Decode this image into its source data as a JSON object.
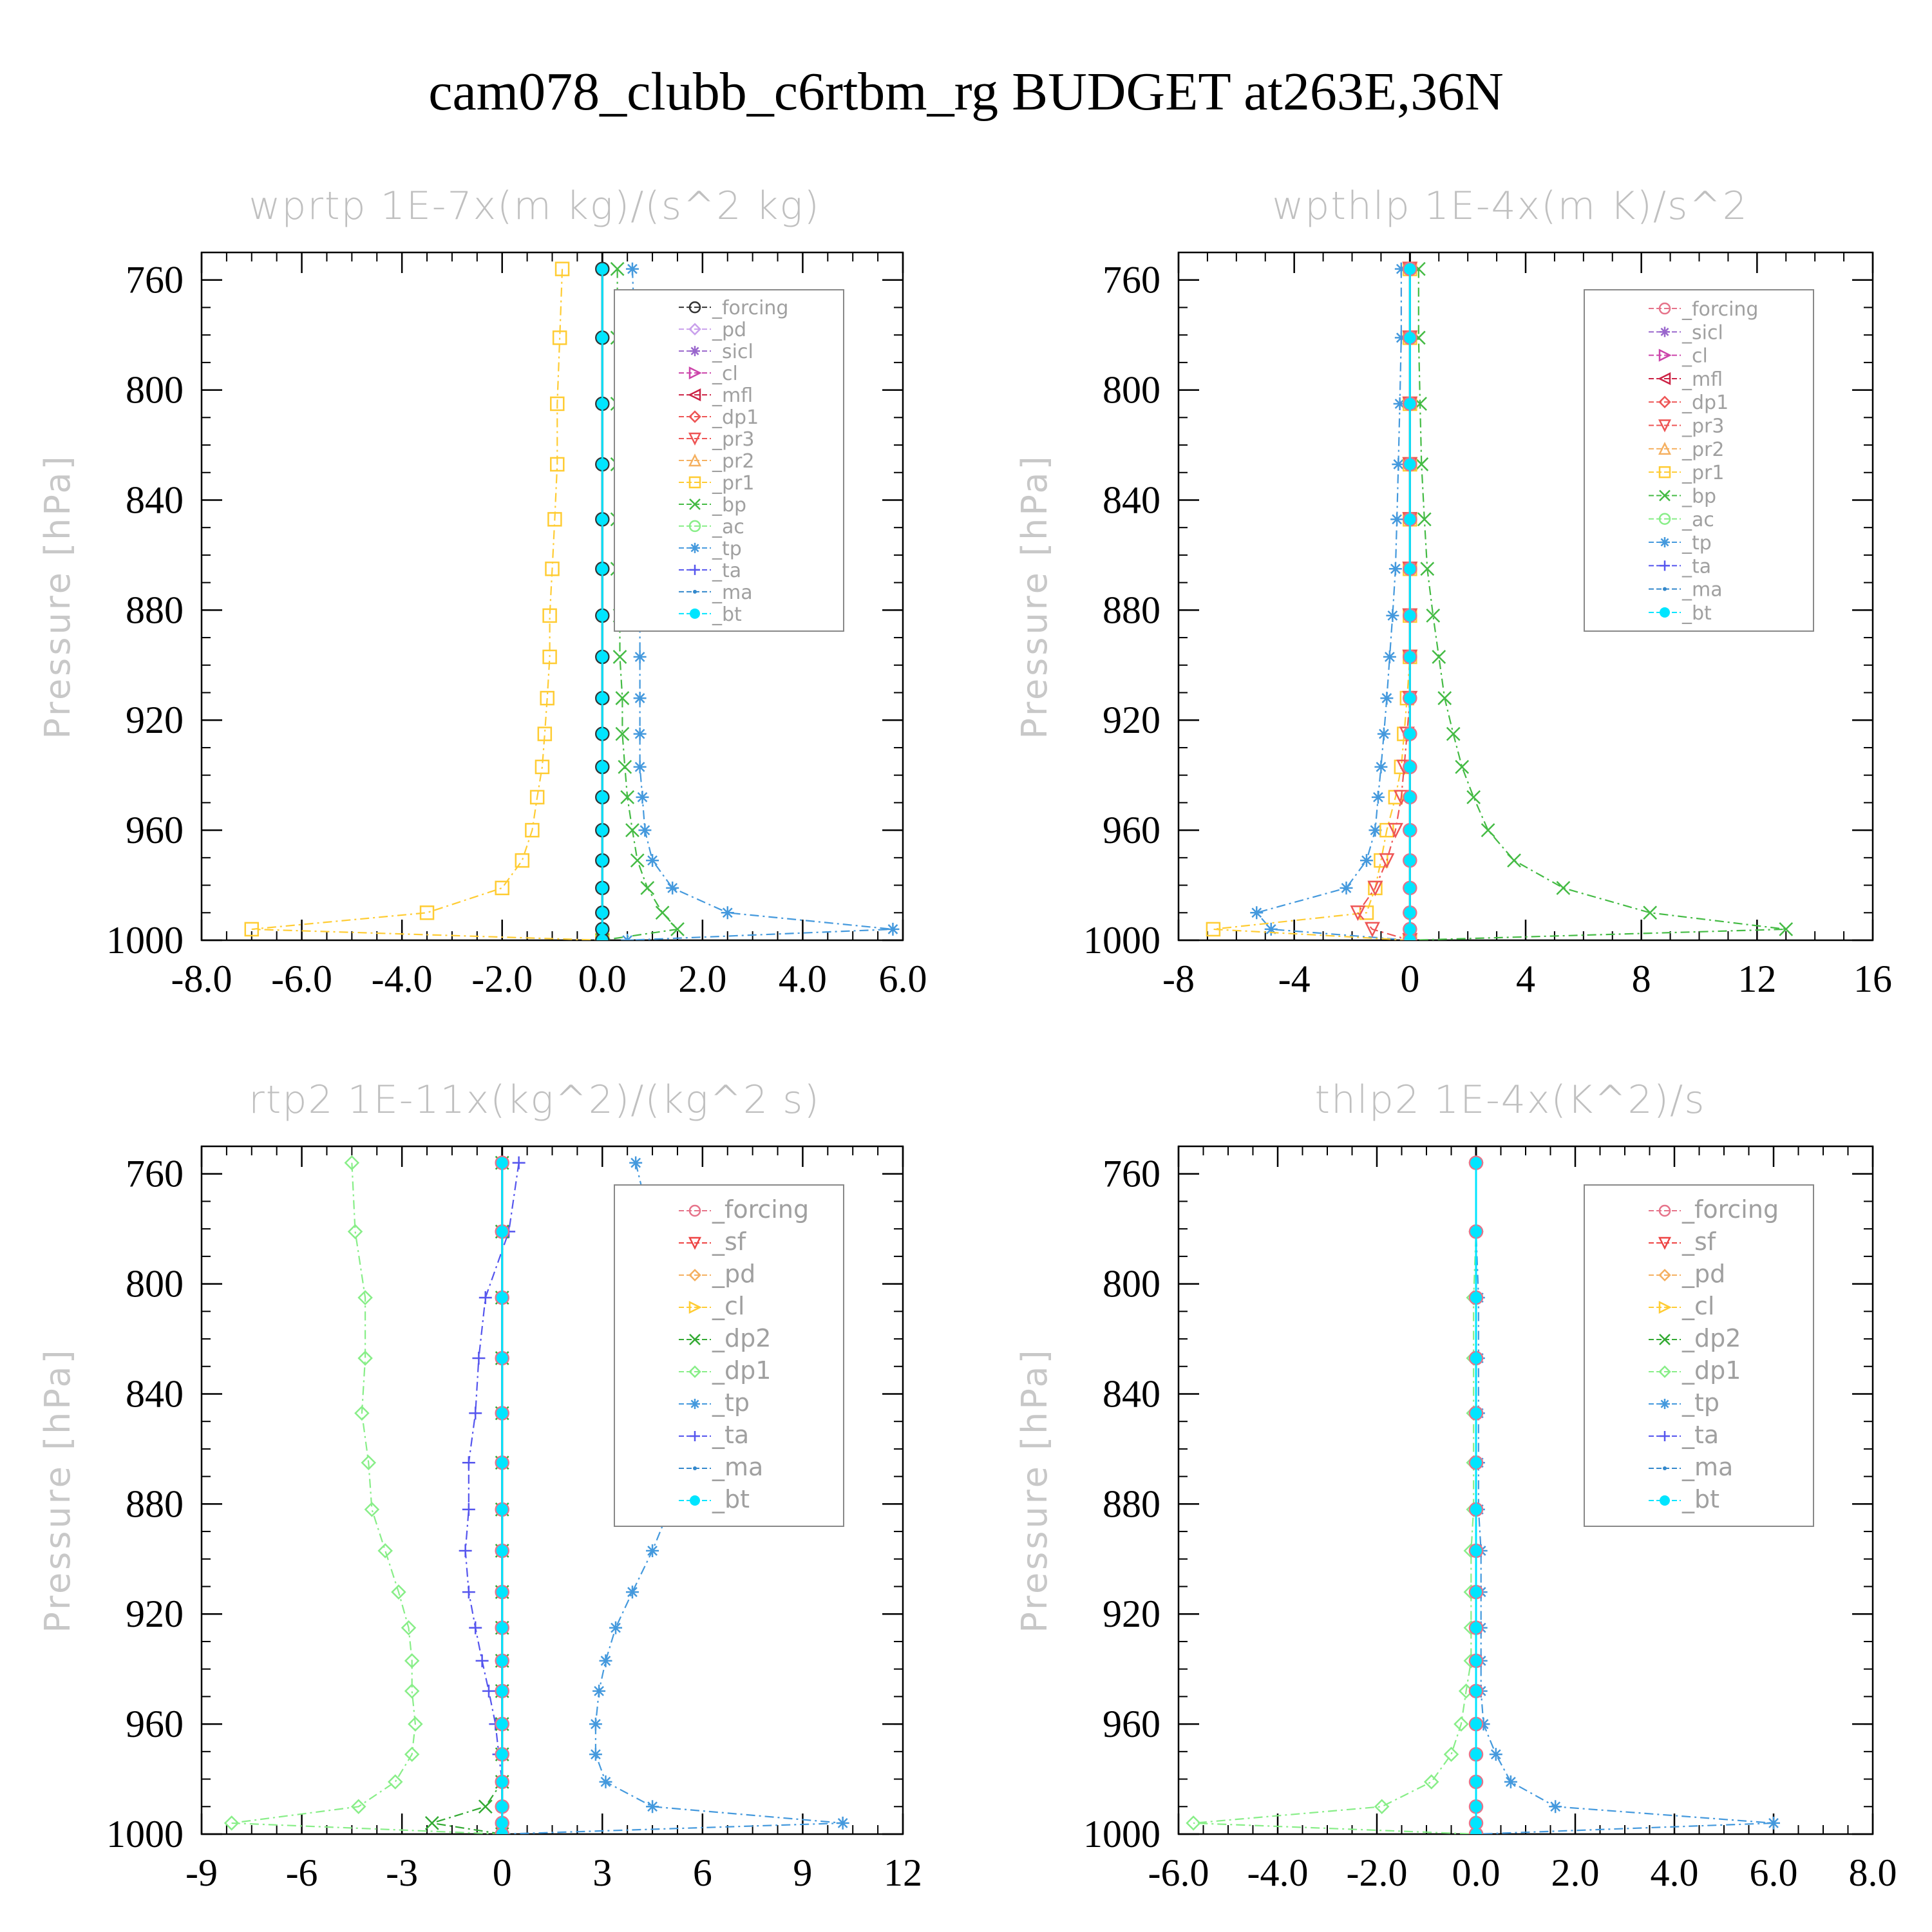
{
  "title": "cam078_clubb_c6rtbm_rg  BUDGET at263E,36N",
  "colors": {
    "forcing": "#333333",
    "forcing_alt": "#e6738a",
    "pd": "#c9a0ec",
    "sicl": "#9966cc",
    "cl": "#cc44aa",
    "mfl": "#cc2244",
    "dp1": "#ee5555",
    "pr3": "#ee5555",
    "pr2": "#f5b060",
    "pr1": "#ffcc33",
    "bp": "#44bb44",
    "ac": "#88ee88",
    "tp": "#4499dd",
    "ta": "#5555ee",
    "ma": "#3388cc",
    "bt": "#00e5ff",
    "sf": "#ee4444",
    "dp2": "#33aa33"
  },
  "chart_data": [
    {
      "type": "line",
      "title": "wprtp  1E-7x(m kg)/(s^2 kg)",
      "ylabel": "Pressure [hPa]",
      "xlim": [
        -8,
        6
      ],
      "ylim": [
        1000,
        750
      ],
      "xticks": [
        "-8.0",
        "-6.0",
        "-4.0",
        "-2.0",
        "0.0",
        "2.0",
        "4.0",
        "6.0"
      ],
      "yticks": [
        "760",
        "800",
        "840",
        "880",
        "920",
        "960",
        "1000"
      ],
      "legend": [
        "_forcing",
        "_pd",
        "_sicl",
        "_cl",
        "_mfl",
        "_dp1",
        "_pr3",
        "_pr2",
        "_pr1",
        "_bp",
        "_ac",
        "_tp",
        "_ta",
        "_ma",
        "_bt"
      ],
      "levels": [
        756,
        781,
        805,
        827,
        847,
        865,
        882,
        897,
        912,
        925,
        937,
        948,
        960,
        971,
        981,
        990,
        996,
        1000
      ],
      "series": [
        {
          "name": "_pr1",
          "values": [
            -0.8,
            -0.85,
            -0.9,
            -0.9,
            -0.95,
            -1.0,
            -1.05,
            -1.05,
            -1.1,
            -1.15,
            -1.2,
            -1.3,
            -1.4,
            -1.6,
            -2.0,
            -3.5,
            -7.0,
            0.0
          ]
        },
        {
          "name": "_bp",
          "values": [
            0.3,
            0.3,
            0.3,
            0.3,
            0.3,
            0.3,
            0.35,
            0.35,
            0.4,
            0.4,
            0.45,
            0.5,
            0.6,
            0.7,
            0.9,
            1.2,
            1.5,
            0.0
          ]
        },
        {
          "name": "_tp",
          "values": [
            0.6,
            0.65,
            0.7,
            0.7,
            0.7,
            0.75,
            0.75,
            0.75,
            0.75,
            0.75,
            0.75,
            0.8,
            0.85,
            1.0,
            1.4,
            2.5,
            5.8,
            0.5
          ]
        },
        {
          "name": "_forcing",
          "values": [
            0,
            0,
            0,
            0,
            0,
            0,
            0,
            0,
            0,
            0,
            0,
            0,
            0,
            0,
            0,
            0,
            0,
            0
          ]
        },
        {
          "name": "_bt",
          "values": [
            0,
            0,
            0,
            0,
            0,
            0,
            0,
            0,
            0,
            0,
            0,
            0,
            0,
            0,
            0,
            0,
            0,
            0
          ]
        }
      ]
    },
    {
      "type": "line",
      "title": "wpthlp  1E-4x(m K)/s^2",
      "ylabel": "Pressure [hPa]",
      "xlim": [
        -8,
        16
      ],
      "ylim": [
        1000,
        750
      ],
      "xticks": [
        "-8",
        "-4",
        "0",
        "4",
        "8",
        "12",
        "16"
      ],
      "yticks": [
        "760",
        "800",
        "840",
        "880",
        "920",
        "960",
        "1000"
      ],
      "legend": [
        "_forcing",
        "_sicl",
        "_cl",
        "_mfl",
        "_dp1",
        "_pr3",
        "_pr2",
        "_pr1",
        "_bp",
        "_ac",
        "_tp",
        "_ta",
        "_ma",
        "_bt"
      ],
      "levels": [
        756,
        781,
        805,
        827,
        847,
        865,
        882,
        897,
        912,
        925,
        937,
        948,
        960,
        971,
        981,
        990,
        996,
        1000
      ],
      "series": [
        {
          "name": "_bp",
          "values": [
            0.3,
            0.3,
            0.35,
            0.4,
            0.5,
            0.6,
            0.8,
            1.0,
            1.2,
            1.5,
            1.8,
            2.2,
            2.7,
            3.6,
            5.3,
            8.3,
            13.0,
            0.0
          ]
        },
        {
          "name": "_tp",
          "values": [
            -0.3,
            -0.3,
            -0.35,
            -0.4,
            -0.45,
            -0.5,
            -0.6,
            -0.7,
            -0.8,
            -0.9,
            -1.0,
            -1.1,
            -1.2,
            -1.5,
            -2.2,
            -5.3,
            -4.8,
            0.0
          ]
        },
        {
          "name": "_pr1",
          "values": [
            0,
            0,
            0,
            0,
            0,
            0,
            0,
            0,
            -0.1,
            -0.2,
            -0.3,
            -0.5,
            -0.8,
            -1.0,
            -1.2,
            -1.5,
            -6.8,
            0.0
          ]
        },
        {
          "name": "_pr3",
          "values": [
            0,
            0,
            0,
            0,
            0,
            0,
            0,
            0,
            0,
            -0.1,
            -0.2,
            -0.3,
            -0.5,
            -0.8,
            -1.2,
            -1.8,
            -1.3,
            0.0
          ]
        },
        {
          "name": "_forcing",
          "values": [
            0,
            0,
            0,
            0,
            0,
            0,
            0,
            0,
            0,
            0,
            0,
            0,
            0,
            0,
            0,
            0,
            0,
            0
          ]
        },
        {
          "name": "_bt",
          "values": [
            0,
            0,
            0,
            0,
            0,
            0,
            0,
            0,
            0,
            0,
            0,
            0,
            0,
            0,
            0,
            0,
            0,
            0
          ]
        }
      ]
    },
    {
      "type": "line",
      "title": "rtp2  1E-11x(kg^2)/(kg^2 s)",
      "ylabel": "Pressure [hPa]",
      "xlim": [
        -9,
        12
      ],
      "ylim": [
        1000,
        750
      ],
      "xticks": [
        "-9",
        "-6",
        "-3",
        "0",
        "3",
        "6",
        "9",
        "12"
      ],
      "yticks": [
        "760",
        "800",
        "840",
        "880",
        "920",
        "960",
        "1000"
      ],
      "legend": [
        "_forcing",
        "_sf",
        "_pd",
        "_cl",
        "_dp2",
        "_dp1",
        "_tp",
        "_ta",
        "_ma",
        "_bt"
      ],
      "levels": [
        756,
        781,
        805,
        827,
        847,
        865,
        882,
        897,
        912,
        925,
        937,
        948,
        960,
        971,
        981,
        990,
        996,
        1000
      ],
      "series": [
        {
          "name": "_dp1",
          "values": [
            -4.5,
            -4.4,
            -4.1,
            -4.1,
            -4.2,
            -4.0,
            -3.9,
            -3.5,
            -3.1,
            -2.8,
            -2.7,
            -2.7,
            -2.6,
            -2.7,
            -3.2,
            -4.3,
            -8.1,
            0.0
          ]
        },
        {
          "name": "_tp",
          "values": [
            4.0,
            4.5,
            4.7,
            4.8,
            4.9,
            5.0,
            5.0,
            4.5,
            3.9,
            3.4,
            3.1,
            2.9,
            2.8,
            2.8,
            3.1,
            4.5,
            10.2,
            0.0
          ]
        },
        {
          "name": "_ta",
          "values": [
            0.5,
            0.2,
            -0.5,
            -0.7,
            -0.8,
            -1.0,
            -1.0,
            -1.1,
            -1.0,
            -0.8,
            -0.6,
            -0.4,
            -0.2,
            -0.1,
            0.0,
            0.0,
            0.0,
            0.0
          ]
        },
        {
          "name": "_dp2",
          "values": [
            0,
            0,
            0,
            0,
            0,
            0,
            0,
            0,
            0,
            0,
            0,
            0,
            0,
            0,
            0,
            -0.5,
            -2.1,
            0.0
          ]
        },
        {
          "name": "_forcing",
          "values": [
            0,
            0,
            0,
            0,
            0,
            0,
            0,
            0,
            0,
            0,
            0,
            0,
            0,
            0,
            0,
            0,
            0,
            0
          ]
        },
        {
          "name": "_bt",
          "values": [
            0,
            0,
            0,
            0,
            0,
            0,
            0,
            0,
            0,
            0,
            0,
            0,
            0,
            0,
            0,
            0,
            0,
            0
          ]
        }
      ]
    },
    {
      "type": "line",
      "title": "thlp2  1E-4x(K^2)/s",
      "ylabel": "Pressure [hPa]",
      "xlim": [
        -6,
        8
      ],
      "ylim": [
        1000,
        750
      ],
      "xticks": [
        "-6.0",
        "-4.0",
        "-2.0",
        "0.0",
        "2.0",
        "4.0",
        "6.0",
        "8.0"
      ],
      "yticks": [
        "760",
        "800",
        "840",
        "880",
        "920",
        "960",
        "1000"
      ],
      "legend": [
        "_forcing",
        "_sf",
        "_pd",
        "_cl",
        "_dp2",
        "_dp1",
        "_tp",
        "_ta",
        "_ma",
        "_bt"
      ],
      "levels": [
        756,
        781,
        805,
        827,
        847,
        865,
        882,
        897,
        912,
        925,
        937,
        948,
        960,
        971,
        981,
        990,
        996,
        1000
      ],
      "series": [
        {
          "name": "_dp1",
          "values": [
            0,
            0,
            -0.05,
            -0.05,
            -0.05,
            -0.05,
            -0.05,
            -0.1,
            -0.1,
            -0.1,
            -0.1,
            -0.2,
            -0.3,
            -0.5,
            -0.9,
            -1.9,
            -5.7,
            0.0
          ]
        },
        {
          "name": "_tp",
          "values": [
            0,
            0,
            0.05,
            0.05,
            0.05,
            0.05,
            0.05,
            0.1,
            0.1,
            0.1,
            0.1,
            0.1,
            0.15,
            0.4,
            0.7,
            1.6,
            6.0,
            0.0
          ]
        },
        {
          "name": "_forcing",
          "values": [
            0,
            0,
            0,
            0,
            0,
            0,
            0,
            0,
            0,
            0,
            0,
            0,
            0,
            0,
            0,
            0,
            0,
            0
          ]
        },
        {
          "name": "_bt",
          "values": [
            0,
            0,
            0,
            0,
            0,
            0,
            0,
            0,
            0,
            0,
            0,
            0,
            0,
            0,
            0,
            0,
            0,
            0
          ]
        }
      ]
    }
  ]
}
